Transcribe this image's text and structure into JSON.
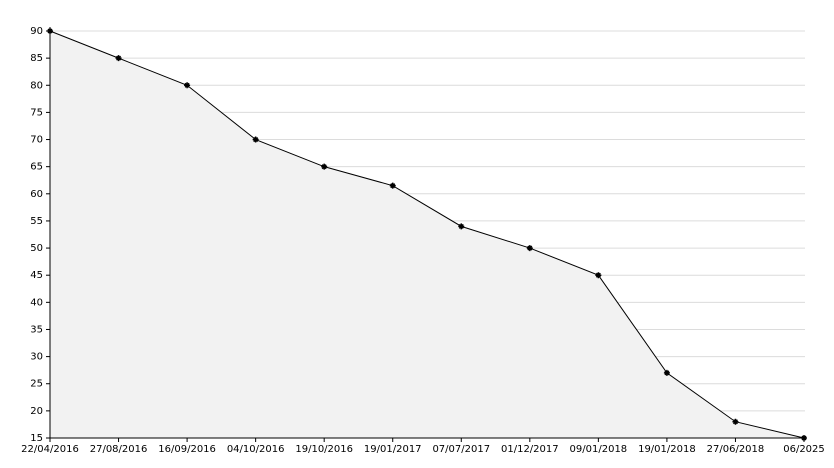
{
  "chart_data": {
    "type": "area",
    "categories": [
      "22/04/2016",
      "27/08/2016",
      "16/09/2016",
      "04/10/2016",
      "19/10/2016",
      "19/01/2017",
      "07/07/2017",
      "01/12/2017",
      "09/01/2018",
      "19/01/2018",
      "27/06/2018",
      "06/2025"
    ],
    "values": [
      90,
      85,
      80,
      70,
      65,
      61.5,
      54,
      50,
      45,
      27,
      18,
      15
    ],
    "color": "#000000",
    "fill": "#f2f2f2",
    "ylim": [
      15,
      90
    ],
    "yticks": [
      15,
      20,
      25,
      30,
      35,
      40,
      45,
      50,
      55,
      60,
      65,
      70,
      75,
      80,
      85,
      90
    ],
    "grid": true
  }
}
